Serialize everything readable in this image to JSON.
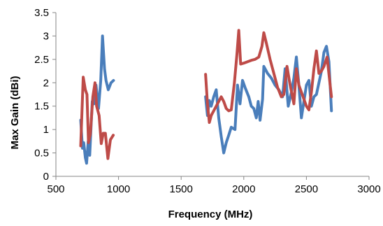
{
  "chart_data": {
    "type": "line",
    "title": "",
    "xlabel": "Frequency (MHz)",
    "ylabel": "Max Gain (dBi)",
    "xlim": [
      500,
      3000
    ],
    "ylim": [
      0,
      3.5
    ],
    "x_ticks": [
      500,
      1000,
      1500,
      2000,
      2500,
      3000
    ],
    "y_ticks": [
      0,
      0.5,
      1,
      1.5,
      2,
      2.5,
      3,
      3.5
    ],
    "x_tick_labels": [
      "500",
      "1000",
      "1500",
      "2000",
      "2500",
      "3000"
    ],
    "y_tick_labels": [
      "0",
      "0.5",
      "1",
      "1.5",
      "2",
      "2.5",
      "3",
      "3.5"
    ],
    "grid": "off",
    "legend": "none",
    "series": [
      {
        "color": "#4a7ebb",
        "segments": [
          [
            [
              698,
              1.2
            ],
            [
              712,
              0.6
            ],
            [
              722,
              0.72
            ],
            [
              735,
              0.4
            ],
            [
              745,
              0.28
            ],
            [
              758,
              0.75
            ],
            [
              770,
              0.45
            ],
            [
              790,
              1.6
            ],
            [
              805,
              1.55
            ],
            [
              820,
              1.95
            ],
            [
              840,
              1.45
            ],
            [
              858,
              2.05
            ],
            [
              872,
              3.0
            ],
            [
              888,
              2.3
            ],
            [
              900,
              2.05
            ],
            [
              918,
              1.85
            ],
            [
              940,
              2.0
            ],
            [
              960,
              2.05
            ]
          ],
          [
            [
              1695,
              1.7
            ],
            [
              1710,
              1.3
            ],
            [
              1725,
              1.62
            ],
            [
              1740,
              1.5
            ],
            [
              1760,
              1.7
            ],
            [
              1780,
              1.85
            ],
            [
              1800,
              1.25
            ],
            [
              1820,
              0.85
            ],
            [
              1840,
              0.5
            ],
            [
              1860,
              0.72
            ],
            [
              1880,
              0.88
            ],
            [
              1900,
              1.05
            ],
            [
              1930,
              1.0
            ],
            [
              1950,
              1.95
            ],
            [
              1970,
              1.55
            ],
            [
              1990,
              2.05
            ],
            [
              2010,
              1.9
            ],
            [
              2040,
              1.7
            ],
            [
              2060,
              1.5
            ],
            [
              2080,
              1.45
            ],
            [
              2100,
              1.25
            ],
            [
              2115,
              1.6
            ],
            [
              2130,
              1.2
            ],
            [
              2150,
              1.65
            ],
            [
              2160,
              2.35
            ],
            [
              2190,
              2.2
            ],
            [
              2220,
              2.1
            ],
            [
              2250,
              1.95
            ],
            [
              2280,
              1.85
            ],
            [
              2310,
              1.7
            ],
            [
              2330,
              2.3
            ],
            [
              2355,
              1.5
            ],
            [
              2380,
              1.8
            ],
            [
              2400,
              2.1
            ],
            [
              2420,
              2.55
            ],
            [
              2440,
              1.95
            ],
            [
              2460,
              1.25
            ],
            [
              2480,
              1.6
            ],
            [
              2500,
              1.95
            ],
            [
              2520,
              2.05
            ],
            [
              2540,
              1.5
            ],
            [
              2560,
              1.7
            ],
            [
              2580,
              1.75
            ],
            [
              2600,
              2.0
            ],
            [
              2620,
              2.25
            ],
            [
              2640,
              2.65
            ],
            [
              2660,
              2.78
            ],
            [
              2680,
              2.45
            ],
            [
              2700,
              1.4
            ]
          ]
        ]
      },
      {
        "color": "#be4b48",
        "segments": [
          [
            [
              698,
              0.65
            ],
            [
              718,
              2.12
            ],
            [
              735,
              1.85
            ],
            [
              748,
              1.75
            ],
            [
              760,
              0.72
            ],
            [
              775,
              0.9
            ],
            [
              795,
              1.7
            ],
            [
              812,
              2.0
            ],
            [
              825,
              1.5
            ],
            [
              845,
              1.3
            ],
            [
              862,
              0.7
            ],
            [
              878,
              0.92
            ],
            [
              895,
              0.92
            ],
            [
              915,
              0.38
            ],
            [
              935,
              0.78
            ],
            [
              958,
              0.88
            ]
          ],
          [
            [
              1695,
              2.18
            ],
            [
              1710,
              1.55
            ],
            [
              1725,
              1.15
            ],
            [
              1740,
              1.3
            ],
            [
              1760,
              1.4
            ],
            [
              1780,
              1.5
            ],
            [
              1800,
              1.6
            ],
            [
              1820,
              1.7
            ],
            [
              1840,
              1.6
            ],
            [
              1860,
              1.45
            ],
            [
              1880,
              1.4
            ],
            [
              1900,
              1.42
            ],
            [
              1925,
              2.0
            ],
            [
              1945,
              2.6
            ],
            [
              1960,
              3.12
            ],
            [
              1975,
              2.4
            ],
            [
              2000,
              2.42
            ],
            [
              2030,
              2.45
            ],
            [
              2060,
              2.48
            ],
            [
              2090,
              2.5
            ],
            [
              2120,
              2.55
            ],
            [
              2145,
              2.78
            ],
            [
              2160,
              3.07
            ],
            [
              2180,
              2.85
            ],
            [
              2210,
              2.5
            ],
            [
              2240,
              2.2
            ],
            [
              2270,
              1.9
            ],
            [
              2300,
              1.7
            ],
            [
              2320,
              1.75
            ],
            [
              2345,
              2.35
            ],
            [
              2370,
              1.95
            ],
            [
              2400,
              1.55
            ],
            [
              2420,
              2.3
            ],
            [
              2440,
              1.95
            ],
            [
              2460,
              1.8
            ],
            [
              2480,
              1.65
            ],
            [
              2500,
              1.5
            ],
            [
              2520,
              1.42
            ],
            [
              2540,
              1.8
            ],
            [
              2560,
              2.3
            ],
            [
              2580,
              2.68
            ],
            [
              2600,
              2.2
            ],
            [
              2620,
              2.25
            ],
            [
              2640,
              2.35
            ],
            [
              2665,
              2.55
            ],
            [
              2700,
              1.7
            ]
          ]
        ]
      }
    ]
  }
}
